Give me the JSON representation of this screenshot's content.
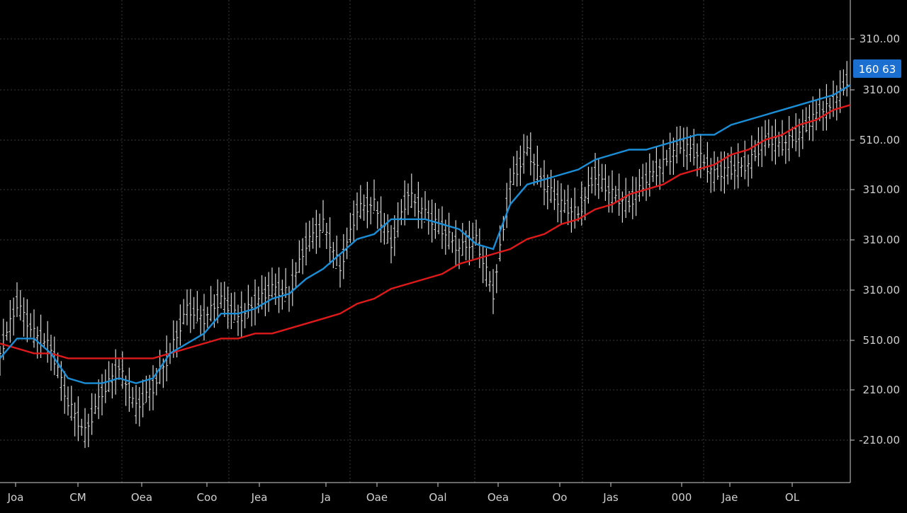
{
  "chart_data": {
    "type": "line",
    "title": "",
    "xlabel": "",
    "ylabel": "",
    "background": "#000000",
    "grid": true,
    "x_tick_labels": [
      "Joa",
      "CM",
      "Oea",
      "Coo",
      "Jea",
      "Ja",
      "Oae",
      "Oal",
      "Oea",
      "Oo",
      "Jas",
      "000",
      "Jae",
      "OL"
    ],
    "y_tick_labels": [
      "310.00",
      "310.00",
      "310.00",
      "310.00",
      "310.00",
      "310.00",
      "310.00",
      "310.00",
      "310.00",
      "310.00",
      "310.00",
      "210.00",
      "210.00",
      "210.00",
      "210.00"
    ],
    "y_ticks_right": [
      "310..00",
      "310.00",
      "510..00",
      "310.00",
      "310.00",
      "310.00",
      "510.00",
      "210.00",
      "-210.00"
    ],
    "last_price_label": "160 63",
    "colors": {
      "price": "#d8d8d8",
      "fast_ma": "#1a8fd8",
      "slow_ma": "#e01a1a",
      "last_price_badge": "#1a6fd0",
      "grid": "#3a3a3a",
      "axis_text": "#d0d0d0"
    },
    "x": [
      0,
      2,
      4,
      6,
      8,
      10,
      12,
      14,
      16,
      18,
      20,
      22,
      24,
      26,
      28,
      30,
      32,
      34,
      36,
      38,
      40,
      42,
      44,
      46,
      48,
      50,
      52,
      54,
      56,
      58,
      60,
      62,
      64,
      66,
      68,
      70,
      72,
      74,
      76,
      78,
      80,
      82,
      84,
      86,
      88,
      90,
      92,
      94,
      96,
      98,
      100
    ],
    "series": [
      {
        "role": "price",
        "values": [
          4.6,
          5.6,
          5.0,
          4.7,
          3.6,
          3.0,
          3.8,
          4.3,
          3.5,
          3.9,
          4.6,
          5.5,
          5.3,
          5.7,
          5.3,
          5.6,
          5.9,
          5.8,
          6.8,
          7.2,
          6.3,
          7.5,
          7.6,
          6.8,
          7.8,
          7.4,
          7.1,
          6.7,
          6.9,
          5.8,
          8.0,
          8.7,
          8.0,
          7.6,
          7.4,
          8.2,
          7.8,
          7.6,
          8.1,
          8.4,
          8.8,
          8.6,
          8.2,
          8.3,
          8.4,
          8.9,
          8.8,
          9.0,
          9.4,
          9.6,
          10.2
        ]
      },
      {
        "role": "fast_ma",
        "values": [
          4.5,
          4.9,
          4.9,
          4.6,
          4.1,
          4.0,
          4.0,
          4.1,
          4.0,
          4.1,
          4.6,
          4.8,
          5.0,
          5.4,
          5.4,
          5.5,
          5.7,
          5.8,
          6.1,
          6.3,
          6.6,
          6.9,
          7.0,
          7.3,
          7.3,
          7.3,
          7.2,
          7.1,
          6.8,
          6.7,
          7.6,
          8.0,
          8.1,
          8.2,
          8.3,
          8.5,
          8.6,
          8.7,
          8.7,
          8.8,
          8.9,
          9.0,
          9.0,
          9.2,
          9.3,
          9.4,
          9.5,
          9.6,
          9.7,
          9.8,
          10.0
        ]
      },
      {
        "role": "slow_ma",
        "values": [
          4.8,
          4.7,
          4.6,
          4.6,
          4.5,
          4.5,
          4.5,
          4.5,
          4.5,
          4.5,
          4.6,
          4.7,
          4.8,
          4.9,
          4.9,
          5.0,
          5.0,
          5.1,
          5.2,
          5.3,
          5.4,
          5.6,
          5.7,
          5.9,
          6.0,
          6.1,
          6.2,
          6.4,
          6.5,
          6.6,
          6.7,
          6.9,
          7.0,
          7.2,
          7.3,
          7.5,
          7.6,
          7.8,
          7.9,
          8.0,
          8.2,
          8.3,
          8.4,
          8.6,
          8.7,
          8.9,
          9.0,
          9.2,
          9.3,
          9.5,
          9.6
        ]
      }
    ],
    "ylim": [
      2,
      11
    ],
    "xlim": [
      0,
      100
    ]
  }
}
